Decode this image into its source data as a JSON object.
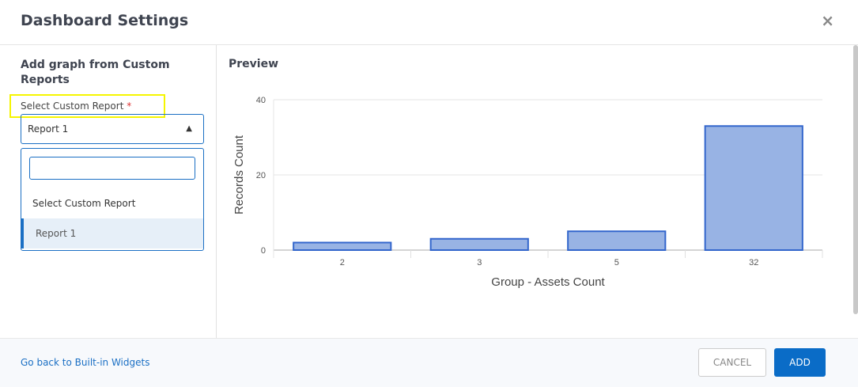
{
  "header": {
    "title": "Dashboard Settings",
    "close_icon": "×"
  },
  "left": {
    "heading": "Add graph from Custom Reports",
    "field_label": "Select Custom Report",
    "required_mark": "*",
    "selected_value": "Report 1",
    "search_value": "",
    "options": [
      "Select Custom Report",
      "Report 1"
    ],
    "highlight_color": "#f5f500"
  },
  "preview": {
    "title": "Preview"
  },
  "chart_data": {
    "type": "bar",
    "categories": [
      "2",
      "3",
      "5",
      "32"
    ],
    "values": [
      2,
      3,
      5,
      33
    ],
    "xlabel": "Group - Assets Count",
    "ylabel": "Records Count",
    "ylim": [
      0,
      40
    ],
    "yticks": [
      "0",
      "20",
      "40"
    ],
    "grid": true,
    "bar_color": "#98b3e4",
    "bar_border": "#3366cc"
  },
  "footer": {
    "back_link": "Go back to Built-in Widgets",
    "cancel": "CANCEL",
    "add": "ADD"
  }
}
